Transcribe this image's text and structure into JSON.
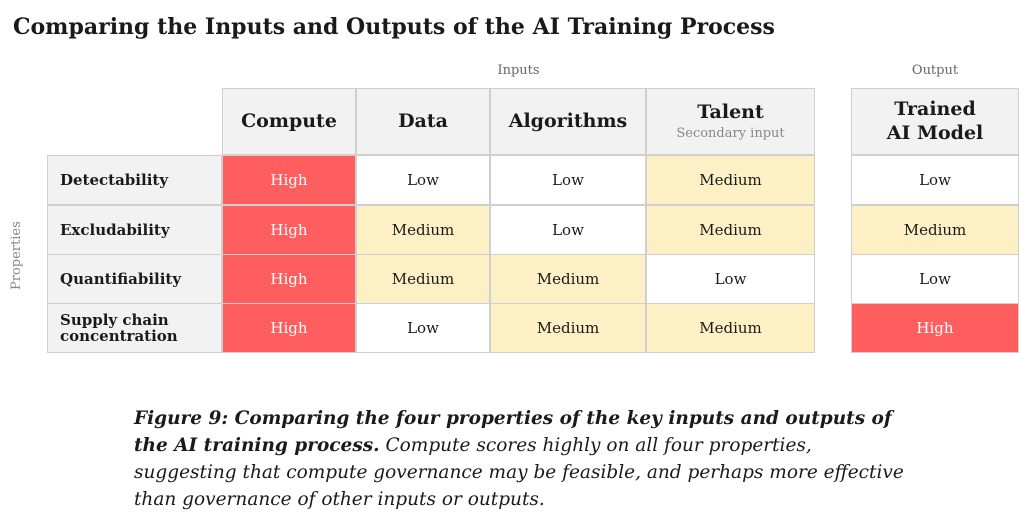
{
  "title": "Comparing the Inputs and Outputs of the AI Training Process",
  "group_labels": {
    "inputs": "Inputs",
    "output": "Output"
  },
  "axis_label": "Properties",
  "columns": [
    {
      "label": "Compute",
      "sub": ""
    },
    {
      "label": "Data",
      "sub": ""
    },
    {
      "label": "Algorithms",
      "sub": ""
    },
    {
      "label": "Talent",
      "sub": "Secondary input"
    },
    {
      "label": "Trained AI Model",
      "sub": ""
    }
  ],
  "rows": [
    {
      "label": "Detectability",
      "values": [
        "High",
        "Low",
        "Low",
        "Medium",
        "Low"
      ]
    },
    {
      "label": "Excludability",
      "values": [
        "High",
        "Medium",
        "Low",
        "Medium",
        "Medium"
      ]
    },
    {
      "label": "Quantifiability",
      "values": [
        "High",
        "Medium",
        "Medium",
        "Low",
        "Low"
      ]
    },
    {
      "label": "Supply chain concentration",
      "values": [
        "High",
        "Low",
        "Medium",
        "Medium",
        "High"
      ]
    }
  ],
  "level_colors": {
    "High": "#ff5e5e",
    "Medium": "#fdf0c4",
    "Low": "#ffffff"
  },
  "caption": {
    "label": "Figure 9: Comparing the four properties of the key inputs and outputs of the AI training process.",
    "text": "Compute scores highly on all four properties, suggesting that compute governance may be feasible, and perhaps more effective than governance of other inputs or outputs."
  }
}
